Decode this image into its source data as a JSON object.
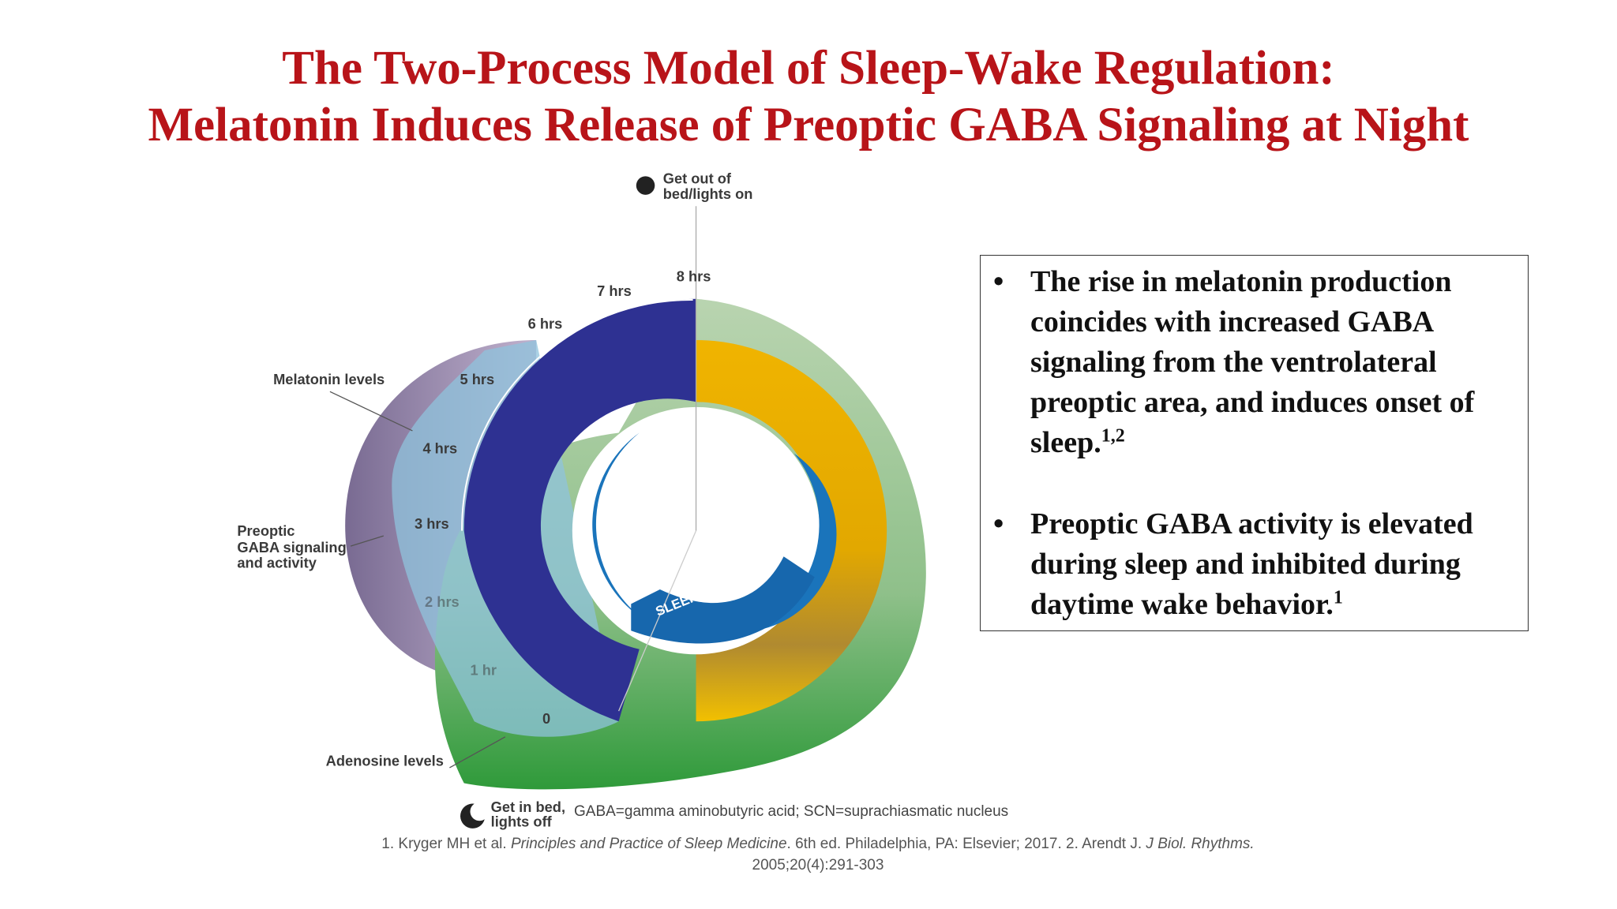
{
  "header": {
    "title_lines": [
      "The Two-Process Model of Sleep-Wake Regulation:",
      "Melatonin Induces Release of Preoptic GABA Signaling at Night"
    ]
  },
  "diagram": {
    "wake_label": [
      "Get out of",
      "bed/lights on"
    ],
    "sleep_label": [
      "Get in bed,",
      "lights off"
    ],
    "melatonin_label": "Melatonin levels",
    "gaba_label": [
      "Preoptic",
      "GABA signaling",
      "and activity"
    ],
    "adenosine_label": "Adenosine levels",
    "hours": [
      "0",
      "1 hr",
      "2 hrs",
      "3 hrs",
      "4 hrs",
      "5 hrs",
      "6 hrs",
      "7 hrs",
      "8 hrs"
    ],
    "sleep_pressure": "SLEEP PRESSURE",
    "minus": "-",
    "plus": "+"
  },
  "bullets": [
    {
      "text": "The rise in melatonin production coincides with increased GABA signaling from the ventrolateral preoptic area, and induces onset of sleep.",
      "sup": "1,2"
    },
    {
      "text": "Preoptic GABA activity is elevated during sleep and inhibited during daytime wake behavior.",
      "sup": "1"
    }
  ],
  "abbreviations": "GABA=gamma aminobutyric acid; SCN=suprachiasmatic nucleus",
  "references": {
    "parts": [
      {
        "text": "1. Kryger MH et al. ",
        "italic": false
      },
      {
        "text": "Principles and Practice of Sleep Medicine",
        "italic": true
      },
      {
        "text": ". 6th ed. Philadelphia, PA: Elsevier; 2017. 2. Arendt J. ",
        "italic": false
      },
      {
        "text": "J Biol. Rhythms.",
        "italic": true
      }
    ],
    "second_line": "2005;20(4):291-303"
  }
}
